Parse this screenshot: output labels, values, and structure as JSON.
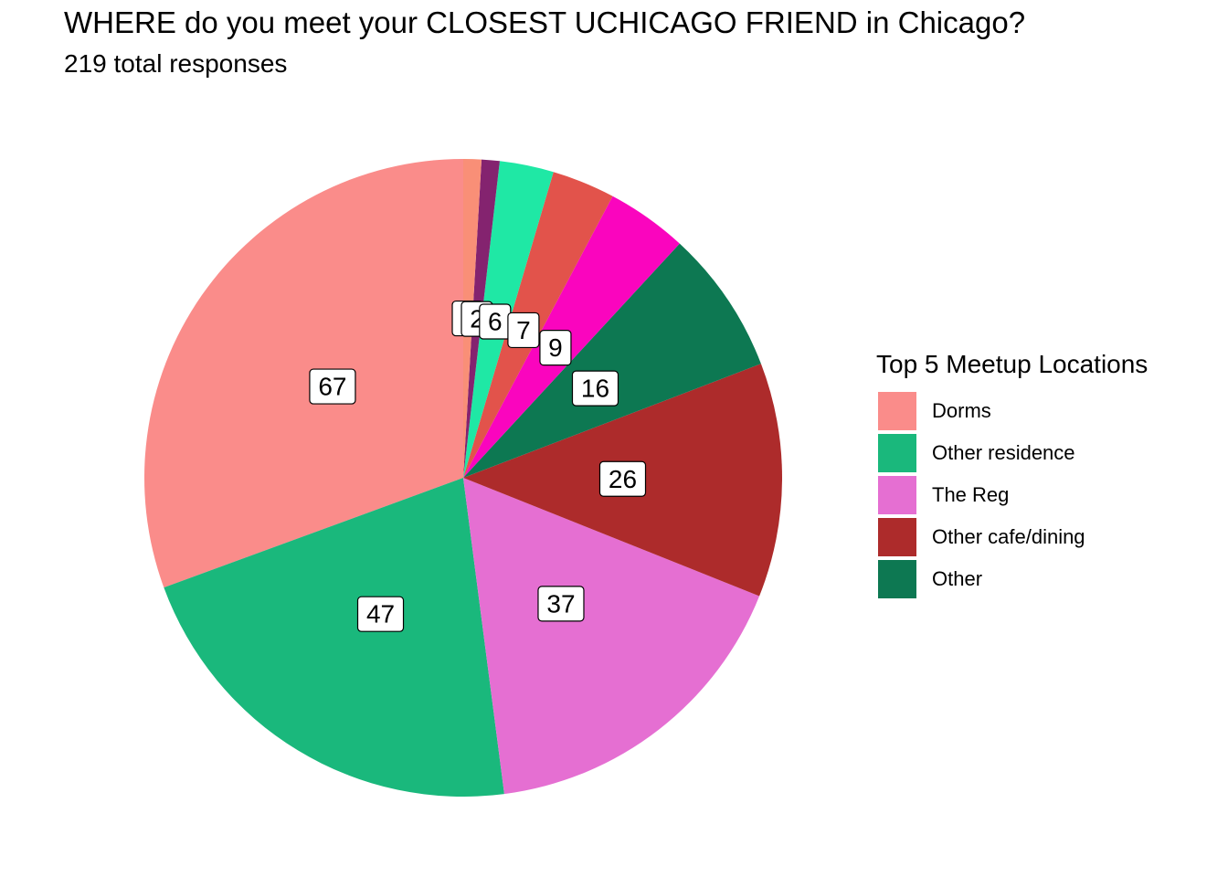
{
  "title": "WHERE do you meet your CLOSEST UCHICAGO FRIEND in Chicago?",
  "subtitle": "219 total responses",
  "legend": {
    "title": "Top 5 Meetup Locations",
    "items": [
      {
        "label": "Dorms",
        "color": "#fa8c8a"
      },
      {
        "label": "Other residence",
        "color": "#1ab87c"
      },
      {
        "label": "The Reg",
        "color": "#e56fd2"
      },
      {
        "label": "Other cafe/dining",
        "color": "#ad2b2b"
      },
      {
        "label": "Other",
        "color": "#0d7852"
      }
    ]
  },
  "chart_data": {
    "type": "pie",
    "total": 219,
    "legend_placement": "right",
    "slices": [
      {
        "value": 67,
        "label": "67",
        "color": "#fa8c8a",
        "legend": "Dorms"
      },
      {
        "value": 47,
        "label": "47",
        "color": "#1ab87c",
        "legend": "Other residence"
      },
      {
        "value": 37,
        "label": "37",
        "color": "#e56fd2",
        "legend": "The Reg"
      },
      {
        "value": 26,
        "label": "26",
        "color": "#ad2b2b",
        "legend": "Other cafe/dining"
      },
      {
        "value": 16,
        "label": "16",
        "color": "#0d7852",
        "legend": "Other"
      },
      {
        "value": 9,
        "label": "9",
        "color": "#fa05be"
      },
      {
        "value": 7,
        "label": "7",
        "color": "#e2534b"
      },
      {
        "value": 6,
        "label": "6",
        "color": "#1fe8a5"
      },
      {
        "value": 2,
        "label": "2",
        "color": "#84236f"
      },
      {
        "value": 2,
        "label": "2",
        "color": "#f98f77"
      }
    ]
  }
}
